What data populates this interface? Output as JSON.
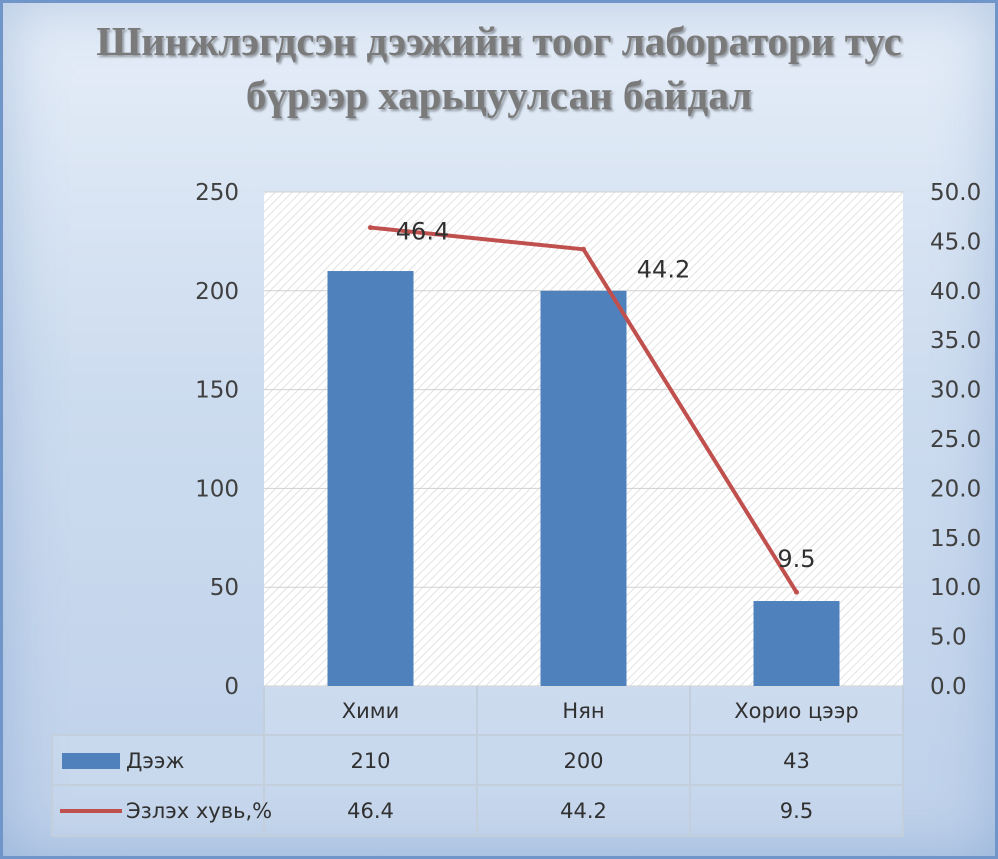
{
  "chart_data": {
    "type": "bar",
    "title": "Шинжлэгдсэн дээжийн тоог лаборатори тус бүрээр харьцуулсан байдал",
    "title_lines": [
      "Шинжлэгдсэн дээжийн тоог лаборатори тус",
      "бүрээр харьцуулсан байдал"
    ],
    "categories": [
      "Хими",
      "Нян",
      "Хорио цээр"
    ],
    "series": [
      {
        "name": "Дээж",
        "type": "bar",
        "axis": "left",
        "values": [
          210,
          200,
          43
        ],
        "color": "#4f81bd"
      },
      {
        "name": "Эзлэх хувь,%",
        "type": "line",
        "axis": "right",
        "values": [
          46.4,
          44.2,
          9.5
        ],
        "color": "#c0504d"
      }
    ],
    "data_labels": [
      "46.4",
      "44.2",
      "9.5"
    ],
    "table_values": [
      [
        "210",
        "200",
        "43"
      ],
      [
        "46.4",
        "44.2",
        "9.5"
      ]
    ],
    "y_left": {
      "min": 0,
      "max": 250,
      "ticks": [
        "0",
        "50",
        "100",
        "150",
        "200",
        "250"
      ]
    },
    "y_right": {
      "min": 0,
      "max": 50,
      "ticks": [
        "0.0",
        "5.0",
        "10.0",
        "15.0",
        "20.0",
        "25.0",
        "30.0",
        "35.0",
        "40.0",
        "45.0",
        "50.0"
      ]
    },
    "grid": true,
    "data_table": true
  }
}
